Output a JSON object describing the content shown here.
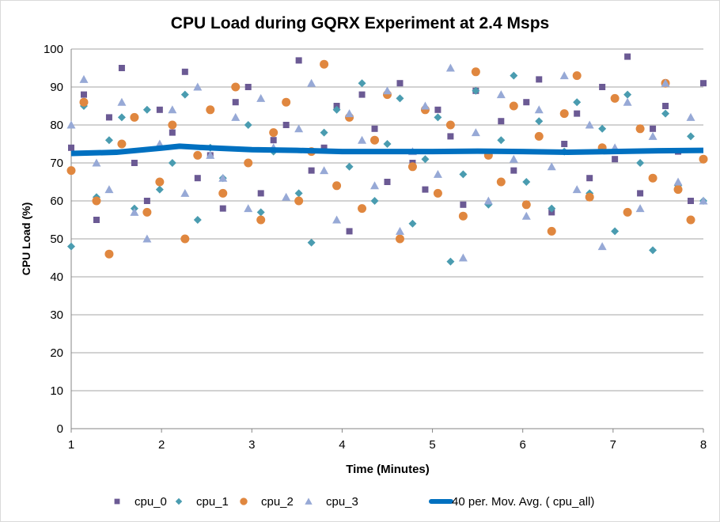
{
  "chart_data": {
    "type": "scatter",
    "title": "CPU Load during GQRX Experiment at 2.4 Msps",
    "xlabel": "Time (Minutes)",
    "ylabel": "CPU Load (%)",
    "xlim": [
      1,
      8
    ],
    "ylim": [
      0,
      100
    ],
    "xticks": [
      "1",
      "2",
      "3",
      "4",
      "5",
      "6",
      "7",
      "8"
    ],
    "yticks": [
      "0",
      "10",
      "20",
      "30",
      "40",
      "50",
      "60",
      "70",
      "80",
      "90",
      "100"
    ],
    "grid": "horizontal",
    "legend": "bottom",
    "x": [
      1.0,
      1.14,
      1.28,
      1.42,
      1.56,
      1.7,
      1.84,
      1.98,
      2.12,
      2.26,
      2.4,
      2.54,
      2.68,
      2.82,
      2.96,
      3.1,
      3.24,
      3.38,
      3.52,
      3.66,
      3.8,
      3.94,
      4.08,
      4.22,
      4.36,
      4.5,
      4.64,
      4.78,
      4.92,
      5.06,
      5.2,
      5.34,
      5.48,
      5.62,
      5.76,
      5.9,
      6.04,
      6.18,
      6.32,
      6.46,
      6.6,
      6.74,
      6.88,
      7.02,
      7.16,
      7.3,
      7.44,
      7.58,
      7.72,
      7.86,
      8.0
    ],
    "series": [
      {
        "name": "cpu_0",
        "marker": "square",
        "color": "#6b5a94",
        "values": [
          74,
          88,
          55,
          82,
          95,
          70,
          60,
          84,
          78,
          94,
          66,
          72,
          58,
          86,
          90,
          62,
          76,
          80,
          97,
          68,
          74,
          85,
          52,
          88,
          79,
          65,
          91,
          70,
          63,
          84,
          77,
          59,
          89,
          72,
          81,
          68,
          86,
          92,
          57,
          75,
          83,
          66,
          90,
          71,
          98,
          62,
          79,
          85,
          73,
          60,
          91
        ]
      },
      {
        "name": "cpu_1",
        "marker": "diamond",
        "color": "#4a9cb0",
        "values": [
          48,
          85,
          61,
          76,
          82,
          58,
          84,
          63,
          70,
          88,
          55,
          74,
          66,
          90,
          80,
          57,
          73,
          86,
          62,
          49,
          78,
          84,
          69,
          91,
          60,
          75,
          87,
          54,
          71,
          82,
          44,
          67,
          89,
          59,
          76,
          93,
          65,
          81,
          58,
          73,
          86,
          62,
          79,
          52,
          88,
          70,
          47,
          83,
          64,
          77,
          60
        ]
      },
      {
        "name": "cpu_2",
        "marker": "circle",
        "color": "#e0873f",
        "values": [
          68,
          86,
          60,
          46,
          75,
          82,
          57,
          65,
          80,
          50,
          72,
          84,
          62,
          90,
          70,
          55,
          78,
          86,
          60,
          73,
          96,
          64,
          82,
          58,
          76,
          88,
          50,
          69,
          84,
          62,
          80,
          56,
          94,
          72,
          65,
          85,
          59,
          77,
          52,
          83,
          93,
          61,
          74,
          87,
          57,
          79,
          66,
          91,
          63,
          55,
          71
        ]
      },
      {
        "name": "cpu_3",
        "marker": "triangle",
        "color": "#97a9d6",
        "values": [
          80,
          92,
          70,
          63,
          86,
          57,
          50,
          75,
          84,
          62,
          90,
          72,
          66,
          82,
          58,
          87,
          74,
          61,
          79,
          91,
          68,
          55,
          83,
          76,
          64,
          89,
          52,
          73,
          85,
          67,
          95,
          45,
          78,
          60,
          88,
          71,
          56,
          84,
          69,
          93,
          63,
          80,
          48,
          74,
          86,
          58,
          77,
          91,
          65,
          82,
          60
        ]
      }
    ],
    "trendline": {
      "name": "40 per. Mov. Avg. ( cpu_all)",
      "color": "#0070c0",
      "x": [
        1,
        1.5,
        2,
        2.2,
        2.5,
        3,
        3.5,
        4,
        4.5,
        5,
        5.5,
        6,
        6.5,
        7,
        7.5,
        8
      ],
      "y": [
        72.5,
        72.8,
        73.9,
        74.4,
        74.0,
        73.5,
        73.3,
        73.0,
        73.0,
        73.0,
        73.1,
        73.0,
        72.8,
        73.0,
        73.2,
        73.3
      ]
    }
  }
}
